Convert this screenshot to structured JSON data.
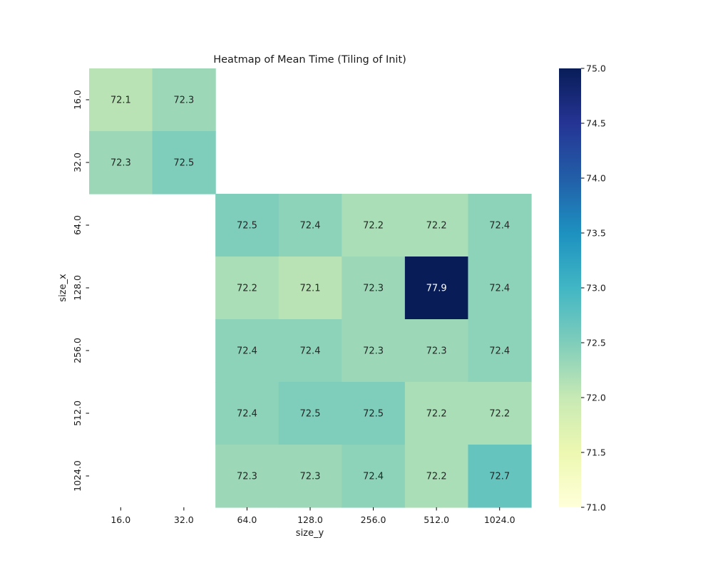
{
  "chart_data": {
    "type": "heatmap",
    "title": "Heatmap of Mean Time (Tiling of Init)",
    "xlabel": "size_y",
    "ylabel": "size_x",
    "x_categories": [
      "16.0",
      "32.0",
      "64.0",
      "128.0",
      "256.0",
      "512.0",
      "1024.0"
    ],
    "y_categories": [
      "16.0",
      "32.0",
      "64.0",
      "128.0",
      "256.0",
      "512.0",
      "1024.0"
    ],
    "values": [
      [
        72.1,
        72.3,
        null,
        null,
        null,
        null,
        null
      ],
      [
        72.3,
        72.5,
        null,
        null,
        null,
        null,
        null
      ],
      [
        null,
        null,
        72.5,
        72.4,
        72.2,
        72.2,
        72.4
      ],
      [
        null,
        null,
        72.2,
        72.1,
        72.3,
        77.9,
        72.4
      ],
      [
        null,
        null,
        72.4,
        72.4,
        72.3,
        72.3,
        72.4
      ],
      [
        null,
        null,
        72.4,
        72.5,
        72.5,
        72.2,
        72.2
      ],
      [
        null,
        null,
        72.3,
        72.3,
        72.4,
        72.2,
        72.7
      ]
    ],
    "colorbar": {
      "colormap": "YlGnBu",
      "vmin": 71.0,
      "vmax": 75.0,
      "ticks": [
        "71.0",
        "71.5",
        "72.0",
        "72.5",
        "73.0",
        "73.5",
        "74.0",
        "74.5",
        "75.0"
      ]
    },
    "grid": false,
    "legend": "none"
  }
}
